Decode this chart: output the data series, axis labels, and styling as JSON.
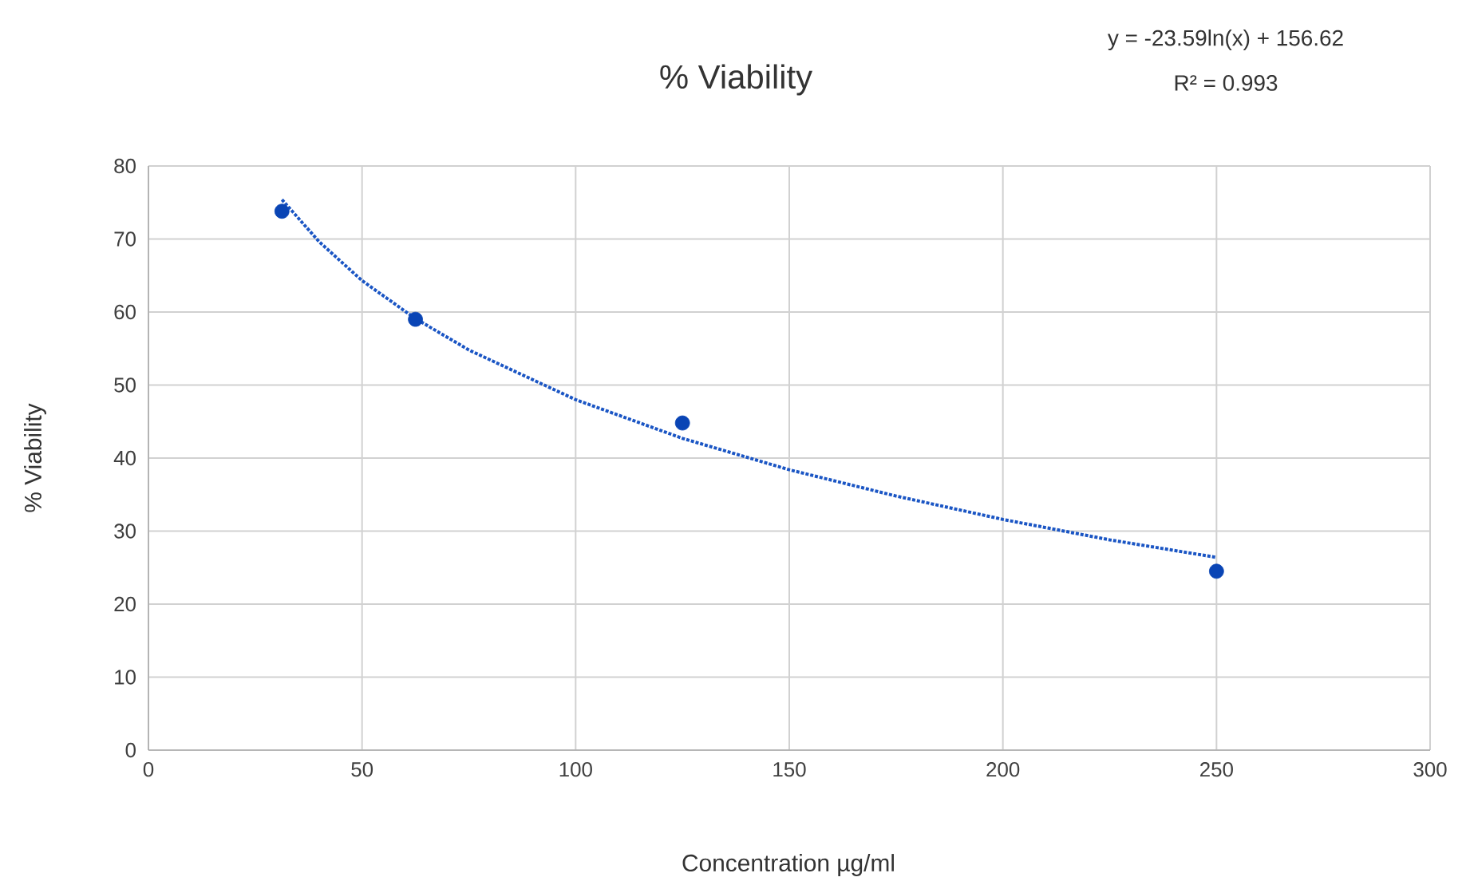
{
  "chart_data": {
    "type": "scatter",
    "title": "% Viability",
    "xlabel": "Concentration µg/ml",
    "ylabel": "% Viability",
    "annotations": [
      "y = -23.59ln(x) + 156.62",
      "R² = 0.993"
    ],
    "xlim": [
      0,
      300
    ],
    "xticks": [
      0,
      50,
      100,
      150,
      200,
      250,
      300
    ],
    "ylim": [
      0,
      80
    ],
    "yticks": [
      0,
      10,
      20,
      30,
      40,
      50,
      60,
      70,
      80
    ],
    "grid": true,
    "marker": "circle",
    "series": [
      {
        "color": "#0a45b5",
        "x": [
          31.25,
          62.5,
          125,
          250
        ],
        "values": [
          73.8,
          59.0,
          44.8,
          24.5
        ]
      },
      {
        "type": "line",
        "color": "#1a55c4",
        "marker": "none",
        "line_style": "dotted",
        "x": [
          31.25,
          40,
          50,
          62.5,
          75,
          100,
          125,
          150,
          175,
          200,
          225,
          250
        ],
        "values": [
          75.4,
          69.6,
          64.3,
          59.1,
          54.8,
          48.0,
          42.7,
          38.4,
          34.8,
          31.6,
          28.8,
          26.4
        ]
      }
    ]
  }
}
